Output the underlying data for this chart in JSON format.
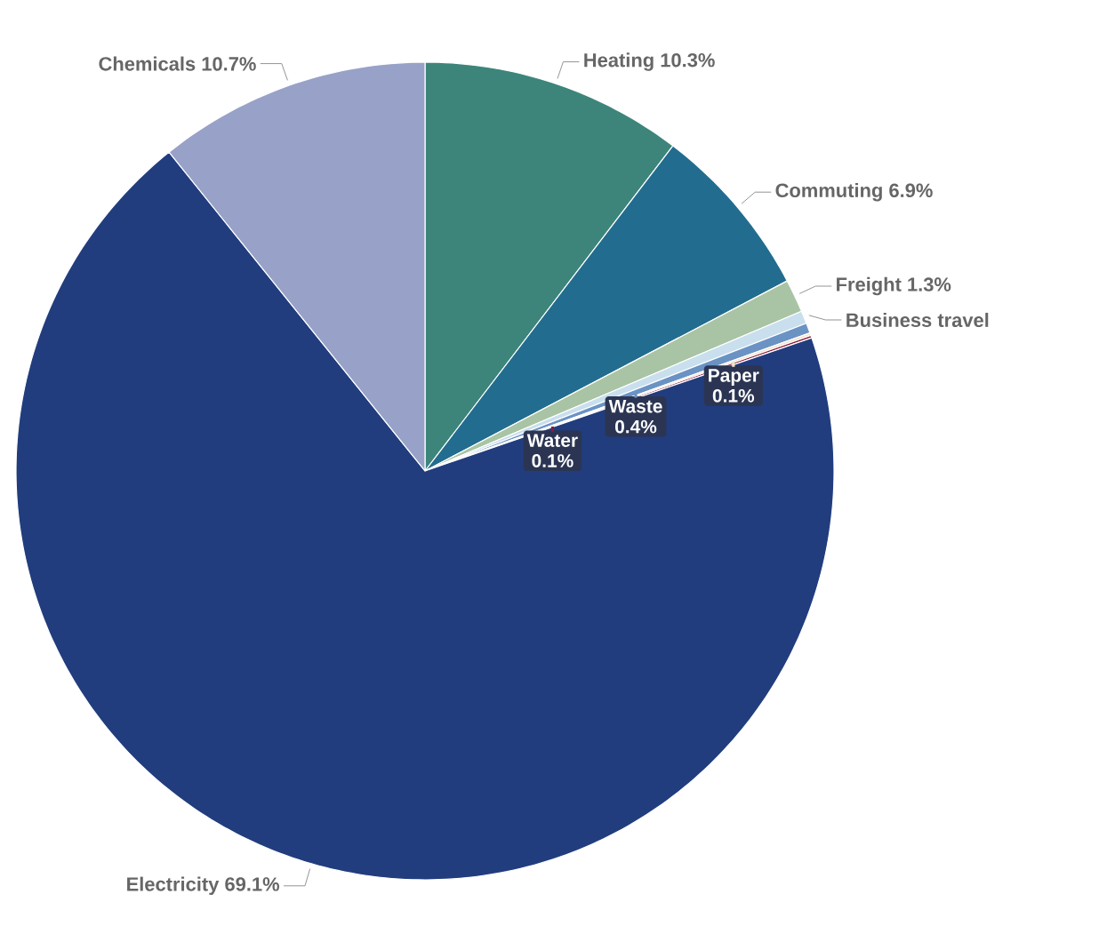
{
  "chart_data": {
    "type": "pie",
    "categories": [
      "Heating",
      "Commuting",
      "Freight",
      "Business travel",
      "Waste",
      "Paper",
      "Water",
      "Electricity",
      "Chemicals"
    ],
    "values": [
      10.3,
      6.9,
      1.3,
      0.5,
      0.4,
      0.1,
      0.1,
      69.1,
      10.7
    ],
    "value_labels": [
      "10.3%",
      "6.9%",
      "1.3%",
      null,
      "0.4%",
      "0.1%",
      "0.1%",
      "69.1%",
      "10.7%"
    ],
    "colors": [
      "#3d857a",
      "#226d8f",
      "#a9c4a4",
      "#c9dfee",
      "#6a93c4",
      "#f3e3c8",
      "#8b1a3a",
      "#213d7e",
      "#98a2c8"
    ]
  }
}
